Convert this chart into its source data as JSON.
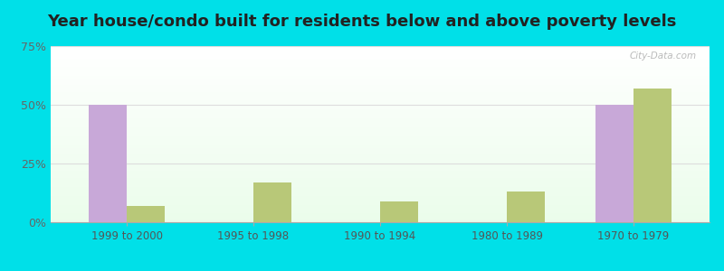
{
  "title": "Year house/condo built for residents below and above poverty levels",
  "categories": [
    "1999 to 2000",
    "1995 to 1998",
    "1990 to 1994",
    "1980 to 1989",
    "1970 to 1979"
  ],
  "below_poverty": [
    50,
    0,
    0,
    0,
    50
  ],
  "above_poverty": [
    7,
    17,
    9,
    13,
    57
  ],
  "below_color": "#c8a8d8",
  "above_color": "#b8c878",
  "ylim": [
    0,
    75
  ],
  "yticks": [
    0,
    25,
    50,
    75
  ],
  "ytick_labels": [
    "0%",
    "25%",
    "50%",
    "75%"
  ],
  "outer_bg": "#00e0e8",
  "title_fontsize": 13,
  "bar_width": 0.3
}
